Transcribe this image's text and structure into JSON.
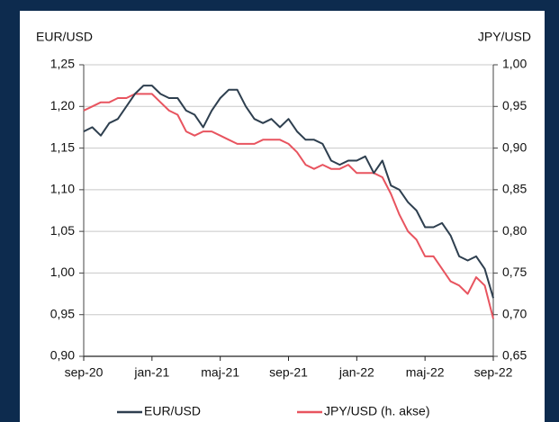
{
  "chart_data": {
    "type": "line",
    "y_label": "EUR/USD",
    "y2_label": "JPY/USD",
    "categories": [
      "sep-20",
      null,
      null,
      null,
      null,
      null,
      null,
      null,
      "jan-21",
      null,
      null,
      null,
      null,
      null,
      null,
      null,
      "maj-21",
      null,
      null,
      null,
      null,
      null,
      null,
      null,
      "sep-21",
      null,
      null,
      null,
      null,
      null,
      null,
      null,
      "jan-22",
      null,
      null,
      null,
      null,
      null,
      null,
      null,
      "maj-22",
      null,
      null,
      null,
      null,
      null,
      null,
      null,
      "sep-22"
    ],
    "series": [
      {
        "name": "EUR/USD",
        "color": "#2e3f4f",
        "values": [
          1.17,
          1.175,
          1.165,
          1.18,
          1.185,
          1.2,
          1.215,
          1.225,
          1.225,
          1.215,
          1.21,
          1.21,
          1.195,
          1.19,
          1.175,
          1.195,
          1.21,
          1.22,
          1.22,
          1.2,
          1.185,
          1.18,
          1.185,
          1.175,
          1.185,
          1.17,
          1.16,
          1.16,
          1.155,
          1.135,
          1.13,
          1.135,
          1.135,
          1.14,
          1.12,
          1.135,
          1.105,
          1.1,
          1.085,
          1.075,
          1.055,
          1.055,
          1.06,
          1.045,
          1.02,
          1.015,
          1.02,
          1.005,
          0.97
        ]
      },
      {
        "name": "JPY/USD (h. akse)",
        "color": "#e8545f",
        "axis": "y2",
        "values": [
          0.945,
          0.95,
          0.955,
          0.955,
          0.96,
          0.96,
          0.965,
          0.965,
          0.965,
          0.955,
          0.945,
          0.94,
          0.92,
          0.915,
          0.92,
          0.92,
          0.915,
          0.91,
          0.905,
          0.905,
          0.905,
          0.91,
          0.91,
          0.91,
          0.905,
          0.895,
          0.88,
          0.875,
          0.88,
          0.875,
          0.875,
          0.88,
          0.87,
          0.87,
          0.87,
          0.865,
          0.845,
          0.82,
          0.8,
          0.79,
          0.77,
          0.77,
          0.755,
          0.74,
          0.735,
          0.725,
          0.745,
          0.735,
          0.695
        ]
      }
    ],
    "ylim": [
      0.9,
      1.25
    ],
    "yticks": [
      {
        "value": 0.9,
        "label": "0,90"
      },
      {
        "value": 0.95,
        "label": "0,95"
      },
      {
        "value": 1.0,
        "label": "1,00"
      },
      {
        "value": 1.05,
        "label": "1,05"
      },
      {
        "value": 1.1,
        "label": "1,10"
      },
      {
        "value": 1.15,
        "label": "1,15"
      },
      {
        "value": 1.2,
        "label": "1,20"
      },
      {
        "value": 1.25,
        "label": "1,25"
      }
    ],
    "y2lim": [
      0.65,
      1.0
    ],
    "y2ticks": [
      {
        "value": 0.65,
        "label": "0,65"
      },
      {
        "value": 0.7,
        "label": "0,70"
      },
      {
        "value": 0.75,
        "label": "0,75"
      },
      {
        "value": 0.8,
        "label": "0,80"
      },
      {
        "value": 0.85,
        "label": "0,85"
      },
      {
        "value": 0.9,
        "label": "0,90"
      },
      {
        "value": 0.95,
        "label": "0,95"
      },
      {
        "value": 1.0,
        "label": "1,00"
      }
    ],
    "grid": true
  }
}
